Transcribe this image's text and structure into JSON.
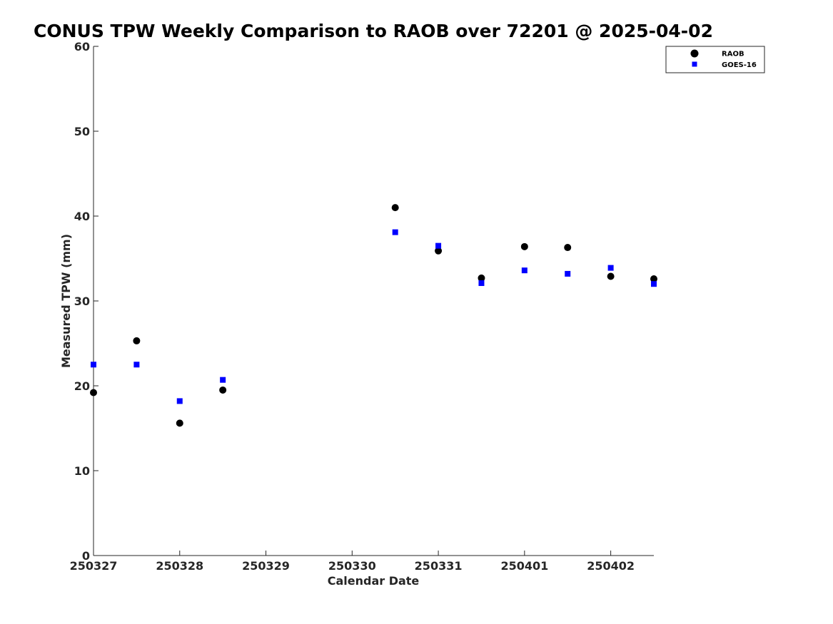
{
  "chart_data": {
    "type": "scatter",
    "title": "CONUS TPW Weekly Comparison to RAOB over 72201 @ 2025-04-02",
    "xlabel": "Calendar Date",
    "ylabel": "Measured TPW (mm)",
    "x_tick_labels": [
      "250327",
      "250328",
      "250329",
      "250330",
      "250331",
      "250401",
      "250402"
    ],
    "y_ticks": [
      0,
      10,
      20,
      30,
      40,
      50,
      60
    ],
    "ylim": [
      0,
      60
    ],
    "xlim": [
      "2025-03-27T00:00",
      "2025-04-02T12:00"
    ],
    "grid": false,
    "legend_position": "top-right",
    "series": [
      {
        "name": "RAOB",
        "marker": "circle",
        "color": "#000000",
        "points": [
          {
            "x": "2025-03-27T00:00",
            "y": 19.2
          },
          {
            "x": "2025-03-27T12:00",
            "y": 25.3
          },
          {
            "x": "2025-03-28T00:00",
            "y": 15.6
          },
          {
            "x": "2025-03-28T12:00",
            "y": 19.5
          },
          {
            "x": "2025-03-30T12:00",
            "y": 41.0
          },
          {
            "x": "2025-03-31T00:00",
            "y": 35.9
          },
          {
            "x": "2025-03-31T12:00",
            "y": 32.7
          },
          {
            "x": "2025-04-01T00:00",
            "y": 36.4
          },
          {
            "x": "2025-04-01T12:00",
            "y": 36.3
          },
          {
            "x": "2025-04-02T00:00",
            "y": 32.9
          },
          {
            "x": "2025-04-02T12:00",
            "y": 32.6
          }
        ]
      },
      {
        "name": "GOES-16",
        "marker": "square",
        "color": "#0000ff",
        "points": [
          {
            "x": "2025-03-27T00:00",
            "y": 22.5
          },
          {
            "x": "2025-03-27T12:00",
            "y": 22.5
          },
          {
            "x": "2025-03-28T00:00",
            "y": 18.2
          },
          {
            "x": "2025-03-28T12:00",
            "y": 20.7
          },
          {
            "x": "2025-03-30T12:00",
            "y": 38.1
          },
          {
            "x": "2025-03-31T00:00",
            "y": 36.5
          },
          {
            "x": "2025-03-31T12:00",
            "y": 32.1
          },
          {
            "x": "2025-04-01T00:00",
            "y": 33.6
          },
          {
            "x": "2025-04-01T12:00",
            "y": 33.2
          },
          {
            "x": "2025-04-02T00:00",
            "y": 33.9
          },
          {
            "x": "2025-04-02T12:00",
            "y": 32.0
          }
        ]
      }
    ]
  }
}
